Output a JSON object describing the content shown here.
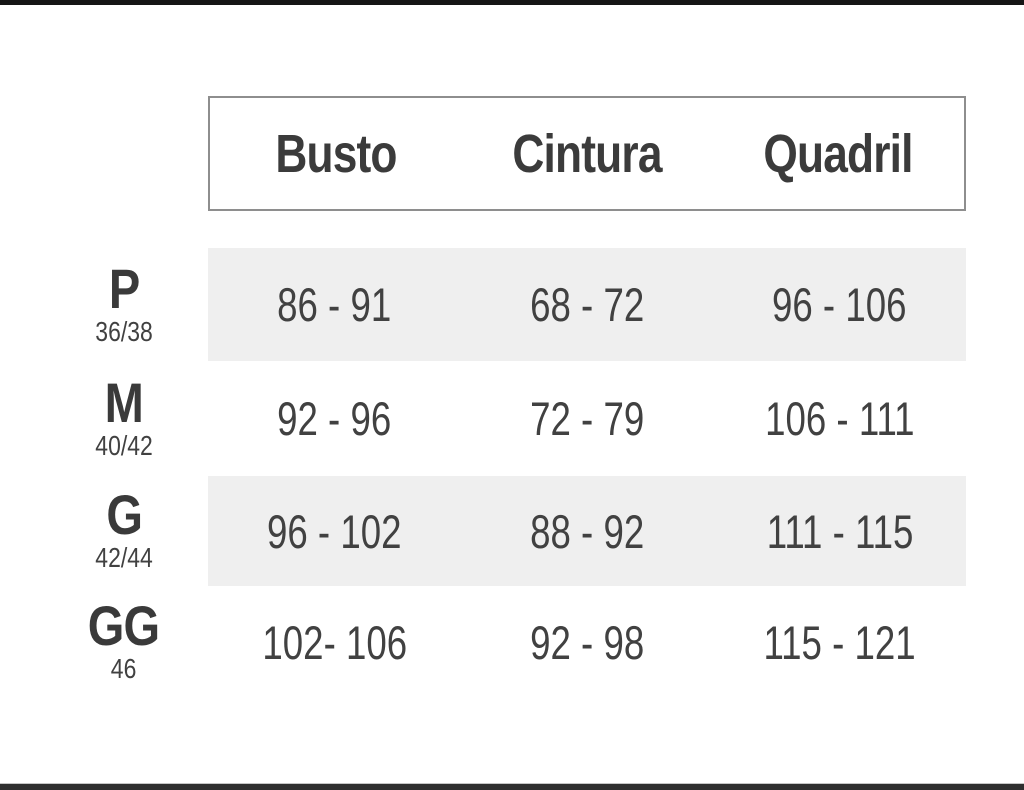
{
  "page": {
    "top_bar_color": "#151515",
    "bottom_bar_color": "#2f2f2f",
    "background_color": "#ffffff"
  },
  "chart_data": {
    "type": "table",
    "title": "",
    "columns": [
      "Busto",
      "Cintura",
      "Quadril"
    ],
    "rows": [
      {
        "size": "P",
        "size_detail": "36/38",
        "values": [
          "86 - 91",
          "68 - 72",
          "96 - 106"
        ]
      },
      {
        "size": "M",
        "size_detail": "40/42",
        "values": [
          "92 - 96",
          "72 - 79",
          "106 - 111"
        ]
      },
      {
        "size": "G",
        "size_detail": "42/44",
        "values": [
          "96 - 102",
          "88 - 92",
          "111 - 115"
        ]
      },
      {
        "size": "GG",
        "size_detail": "46",
        "values": [
          "102- 106",
          "92 - 98",
          "115 - 121"
        ]
      }
    ],
    "layout": {
      "shaded_rows": [
        0,
        2
      ],
      "shaded_row_color": "#efefef",
      "text_color": "#3d3d3d",
      "header_border_color": "#8e8e8e",
      "header_has_border_box": true,
      "grid": "off"
    }
  }
}
